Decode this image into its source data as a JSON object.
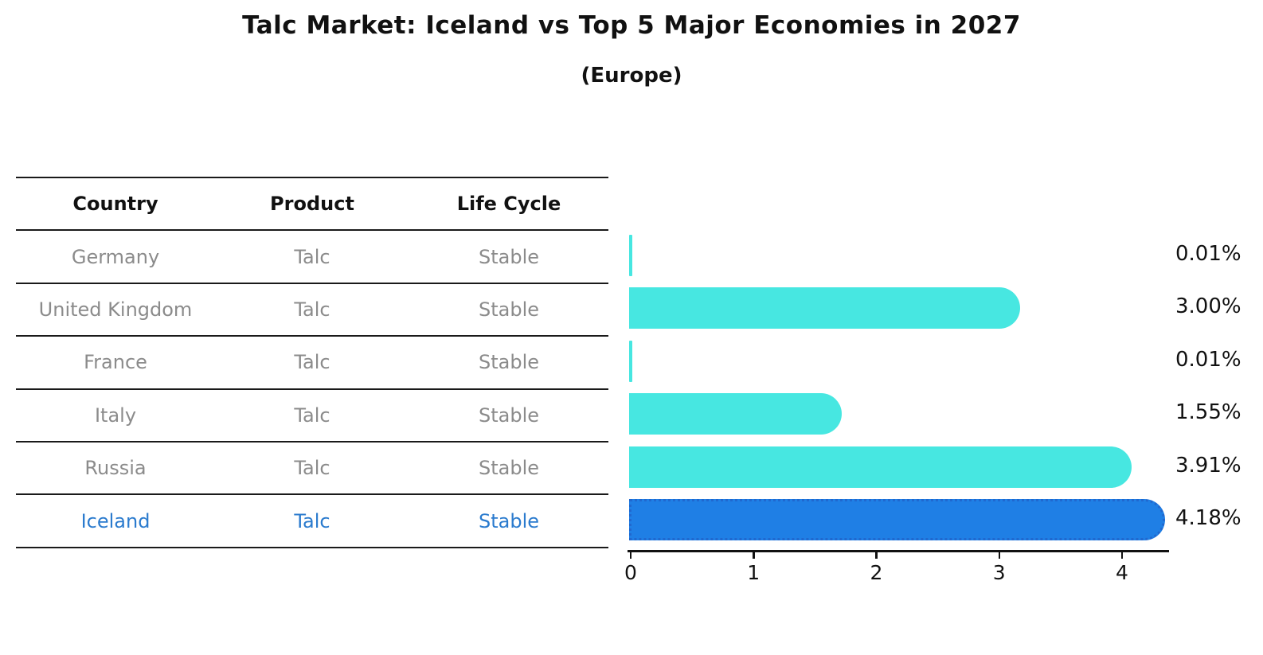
{
  "title": "Talc Market: Iceland vs Top 5 Major Economies in 2027",
  "subtitle": "(Europe)",
  "table": {
    "headers": [
      "Country",
      "Product",
      "Life Cycle"
    ],
    "rows": [
      {
        "country": "Germany",
        "product": "Talc",
        "life_cycle": "Stable",
        "highlighted": false
      },
      {
        "country": "United Kingdom",
        "product": "Talc",
        "life_cycle": "Stable",
        "highlighted": false
      },
      {
        "country": "France",
        "product": "Talc",
        "life_cycle": "Stable",
        "highlighted": false
      },
      {
        "country": "Italy",
        "product": "Talc",
        "life_cycle": "Stable",
        "highlighted": false
      },
      {
        "country": "Russia",
        "product": "Talc",
        "life_cycle": "Stable",
        "highlighted": true
      }
    ],
    "highlight_row": {
      "country": "Iceland",
      "product": "Talc",
      "life_cycle": "Stable"
    }
  },
  "chart_data": {
    "type": "bar",
    "orientation": "horizontal",
    "title": "Talc Market: Iceland vs Top 5 Major Economies in 2027",
    "subtitle": "(Europe)",
    "categories": [
      "Germany",
      "United Kingdom",
      "France",
      "Italy",
      "Russia",
      "Iceland"
    ],
    "values": [
      0.01,
      3.0,
      0.01,
      1.55,
      3.91,
      4.18
    ],
    "value_labels": [
      "0.01%",
      "3.00%",
      "0.01%",
      "1.55%",
      "3.91%",
      "4.18%"
    ],
    "unit": "%",
    "x_ticks": [
      "0",
      "1",
      "2",
      "3",
      "4"
    ],
    "xlim": [
      0,
      4.4
    ],
    "grid": false,
    "legend": "none",
    "bar_color": "#47e7e1",
    "highlight_color": "#1f7fe5",
    "highlight_index": 5,
    "highlight_text_color": "#2b7bce"
  }
}
